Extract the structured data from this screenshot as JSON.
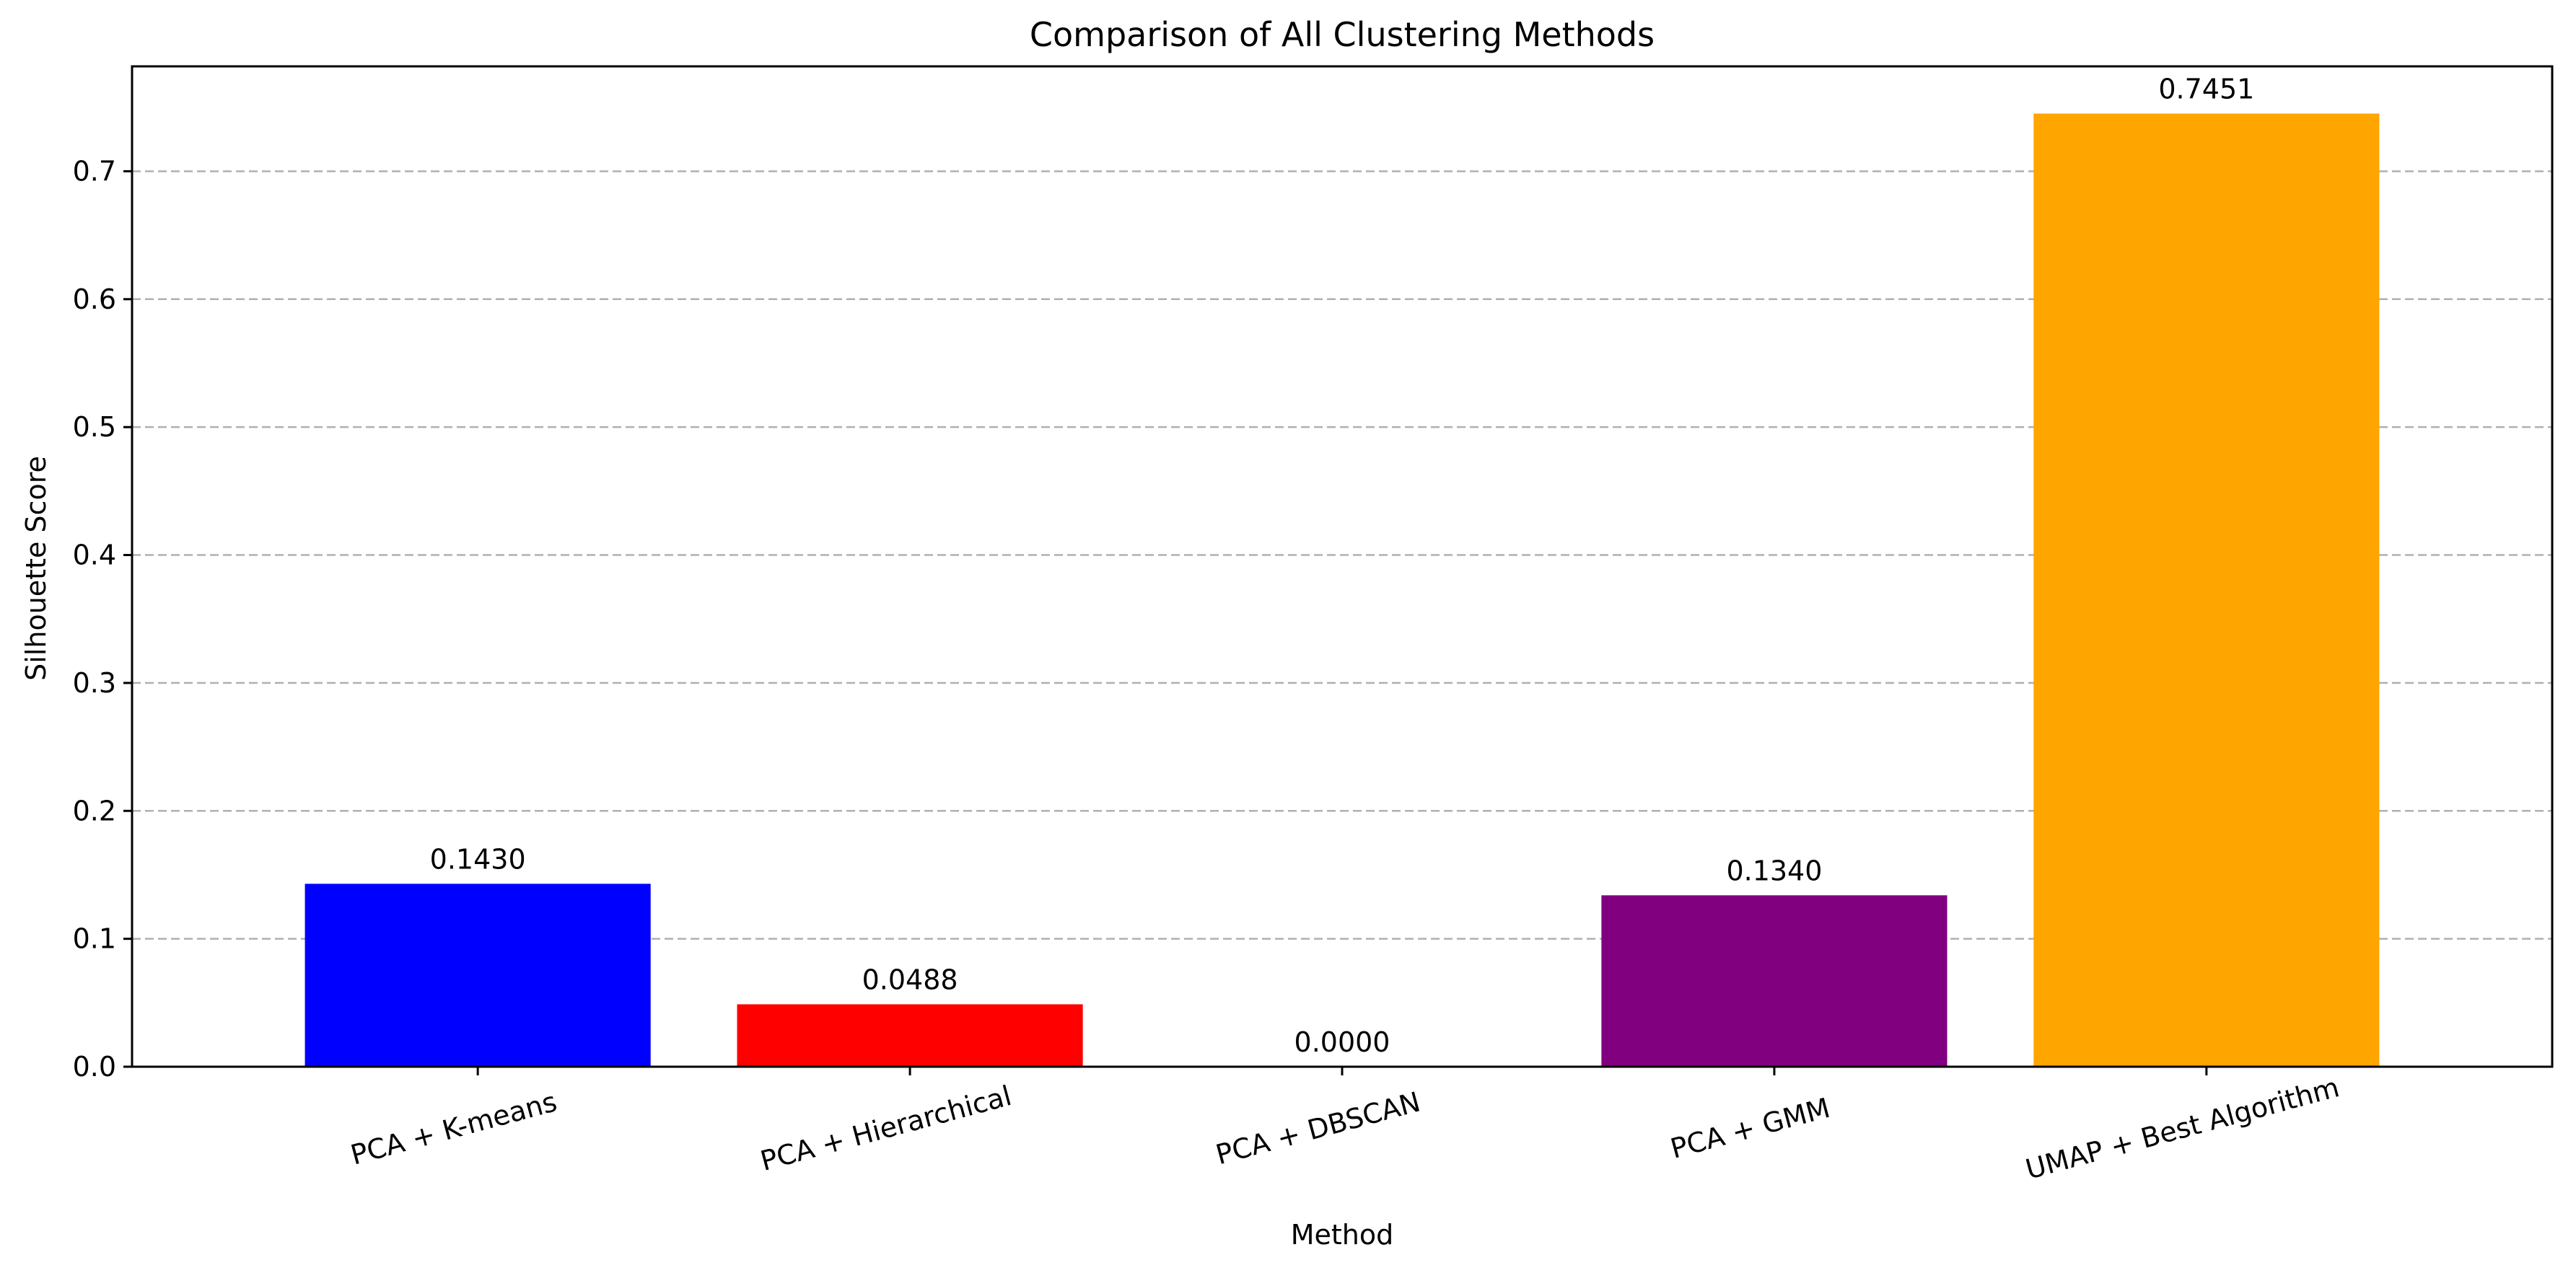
{
  "chart_data": {
    "type": "bar",
    "title": "Comparison of All Clustering Methods",
    "xlabel": "Method",
    "ylabel": "Silhouette Score",
    "categories": [
      "PCA + K-means",
      "PCA + Hierarchical",
      "PCA + DBSCAN",
      "PCA + GMM",
      "UMAP + Best Algorithm"
    ],
    "values": [
      0.143,
      0.0488,
      0.0,
      0.134,
      0.7451
    ],
    "value_labels": [
      "0.1430",
      "0.0488",
      "0.0000",
      "0.1340",
      "0.7451"
    ],
    "colors": [
      "#0000ff",
      "#ff0000",
      "#0000ff",
      "#800080",
      "#ffa500"
    ],
    "ylim": [
      0,
      0.782
    ],
    "yticks": [
      0.0,
      0.1,
      0.2,
      0.3,
      0.4,
      0.5,
      0.6,
      0.7
    ],
    "ytick_labels": [
      "0.0",
      "0.1",
      "0.2",
      "0.3",
      "0.4",
      "0.5",
      "0.6",
      "0.7"
    ],
    "grid": {
      "axis": "y",
      "style": "dashed",
      "color": "#b0b0b0"
    },
    "xtick_rotation_deg": 15
  }
}
